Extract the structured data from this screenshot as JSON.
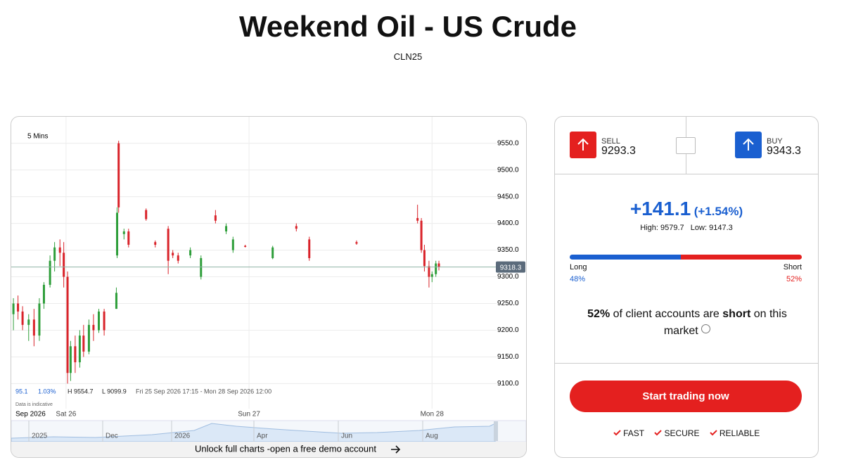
{
  "header": {
    "title": "Weekend Oil - US Crude",
    "subtitle": "CLN25"
  },
  "chart": {
    "type": "candlestick",
    "timeframe": "5 Mins",
    "ylim": [
      9040,
      9597
    ],
    "yticks": [
      {
        "value": 9100,
        "label": "9100.0"
      },
      {
        "value": 9150,
        "label": "9150.0"
      },
      {
        "value": 9200,
        "label": "9200.0"
      },
      {
        "value": 9250,
        "label": "9250.0"
      },
      {
        "value": 9300,
        "label": "9300.0"
      },
      {
        "value": 9350,
        "label": "9350.0"
      },
      {
        "value": 9400,
        "label": "9400.0"
      },
      {
        "value": 9450,
        "label": "9450.0"
      },
      {
        "value": 9500,
        "label": "9500.0"
      },
      {
        "value": 9550,
        "label": "9550.0"
      }
    ],
    "xlim": [
      17,
      80
    ],
    "xticks": [
      {
        "value": 24,
        "label": "Sat 26"
      },
      {
        "value": 48,
        "label": "Sun 27"
      },
      {
        "value": 72,
        "label": "Mon 28"
      }
    ],
    "period_label": "Sep 2026",
    "grid": true,
    "up_color": "#2e9e3a",
    "down_color": "#d9232a",
    "last_price": 9318.3,
    "candles": [
      {
        "x": 17.1,
        "open": 9230,
        "high": 9260,
        "low": 9200,
        "close": 9250
      },
      {
        "x": 17.7,
        "open": 9250,
        "high": 9265,
        "low": 9220,
        "close": 9235
      },
      {
        "x": 18.3,
        "open": 9235,
        "high": 9245,
        "low": 9200,
        "close": 9210
      },
      {
        "x": 19.1,
        "open": 9210,
        "high": 9230,
        "low": 9180,
        "close": 9220
      },
      {
        "x": 19.8,
        "open": 9220,
        "high": 9240,
        "low": 9170,
        "close": 9190
      },
      {
        "x": 20.5,
        "open": 9190,
        "high": 9260,
        "low": 9180,
        "close": 9250
      },
      {
        "x": 21.1,
        "open": 9250,
        "high": 9290,
        "low": 9240,
        "close": 9285
      },
      {
        "x": 21.9,
        "open": 9285,
        "high": 9340,
        "low": 9280,
        "close": 9330
      },
      {
        "x": 22.5,
        "open": 9330,
        "high": 9365,
        "low": 9310,
        "close": 9355
      },
      {
        "x": 23.2,
        "open": 9355,
        "high": 9370,
        "low": 9320,
        "close": 9345
      },
      {
        "x": 23.7,
        "open": 9345,
        "high": 9365,
        "low": 9280,
        "close": 9300
      },
      {
        "x": 24.2,
        "open": 9300,
        "high": 9310,
        "low": 9100,
        "close": 9120
      },
      {
        "x": 24.6,
        "open": 9120,
        "high": 9180,
        "low": 9105,
        "close": 9170
      },
      {
        "x": 25.2,
        "open": 9170,
        "high": 9190,
        "low": 9120,
        "close": 9140
      },
      {
        "x": 25.8,
        "open": 9140,
        "high": 9200,
        "low": 9130,
        "close": 9190
      },
      {
        "x": 26.3,
        "open": 9190,
        "high": 9210,
        "low": 9150,
        "close": 9160
      },
      {
        "x": 27.0,
        "open": 9160,
        "high": 9220,
        "low": 9155,
        "close": 9210
      },
      {
        "x": 27.6,
        "open": 9210,
        "high": 9230,
        "low": 9180,
        "close": 9200
      },
      {
        "x": 28.3,
        "open": 9200,
        "high": 9240,
        "low": 9195,
        "close": 9235
      },
      {
        "x": 29.0,
        "open": 9235,
        "high": 9240,
        "low": 9190,
        "close": 9200
      },
      {
        "x": 30.6,
        "open": 9240,
        "high": 9280,
        "low": 9240,
        "close": 9270
      },
      {
        "x": 30.7,
        "open": 9340,
        "high": 9430,
        "low": 9335,
        "close": 9420
      },
      {
        "x": 30.9,
        "open": 9550,
        "high": 9554.7,
        "low": 9420,
        "close": 9430
      },
      {
        "x": 31.6,
        "open": 9380,
        "high": 9390,
        "low": 9370,
        "close": 9385
      },
      {
        "x": 32.2,
        "open": 9385,
        "high": 9390,
        "low": 9355,
        "close": 9360
      },
      {
        "x": 34.5,
        "open": 9425,
        "high": 9428,
        "low": 9405,
        "close": 9408
      },
      {
        "x": 35.7,
        "open": 9365,
        "high": 9368,
        "low": 9355,
        "close": 9360
      },
      {
        "x": 37.4,
        "open": 9390,
        "high": 9395,
        "low": 9305,
        "close": 9330
      },
      {
        "x": 38.0,
        "open": 9345,
        "high": 9350,
        "low": 9335,
        "close": 9340
      },
      {
        "x": 38.7,
        "open": 9340,
        "high": 9345,
        "low": 9325,
        "close": 9330
      },
      {
        "x": 40.3,
        "open": 9340,
        "high": 9355,
        "low": 9335,
        "close": 9350
      },
      {
        "x": 41.7,
        "open": 9300,
        "high": 9340,
        "low": 9295,
        "close": 9335
      },
      {
        "x": 43.6,
        "open": 9415,
        "high": 9425,
        "low": 9400,
        "close": 9405
      },
      {
        "x": 45.0,
        "open": 9385,
        "high": 9400,
        "low": 9380,
        "close": 9395
      },
      {
        "x": 45.9,
        "open": 9350,
        "high": 9375,
        "low": 9345,
        "close": 9370
      },
      {
        "x": 47.5,
        "open": 9358,
        "high": 9360,
        "low": 9355,
        "close": 9356
      },
      {
        "x": 51.1,
        "open": 9335,
        "high": 9358,
        "low": 9333,
        "close": 9355
      },
      {
        "x": 54.2,
        "open": 9395,
        "high": 9400,
        "low": 9385,
        "close": 9390
      },
      {
        "x": 55.9,
        "open": 9370,
        "high": 9375,
        "low": 9330,
        "close": 9335
      },
      {
        "x": 62.1,
        "open": 9365,
        "high": 9368,
        "low": 9360,
        "close": 9362
      },
      {
        "x": 70.1,
        "open": 9410,
        "high": 9435,
        "low": 9400,
        "close": 9405
      },
      {
        "x": 70.6,
        "open": 9405,
        "high": 9410,
        "low": 9345,
        "close": 9350
      },
      {
        "x": 71.0,
        "open": 9350,
        "high": 9360,
        "low": 9310,
        "close": 9320
      },
      {
        "x": 71.6,
        "open": 9320,
        "high": 9330,
        "low": 9280,
        "close": 9300
      },
      {
        "x": 72.0,
        "open": 9300,
        "high": 9310,
        "low": 9290,
        "close": 9305
      },
      {
        "x": 72.5,
        "open": 9305,
        "high": 9330,
        "low": 9300,
        "close": 9325
      },
      {
        "x": 72.9,
        "open": 9325,
        "high": 9330,
        "low": 9312,
        "close": 9318.3
      }
    ],
    "stats": {
      "change": "95.1",
      "change_pct": "1.03%",
      "high": "H 9554.7",
      "low": "L 9099.9",
      "range": "Fri 25 Sep 2026 17:15 - Mon 28 Sep 2026 12:00"
    },
    "disclaimer": "Data is indicative",
    "navigator_labels": [
      "2025",
      "Dec",
      "2026",
      "Apr",
      "Jun",
      "Aug"
    ],
    "cta": "Unlock full charts -open a free demo account"
  },
  "prices": {
    "sell_label": "SELL",
    "sell": 9293.3,
    "buy_label": "BUY",
    "buy": 9343.3
  },
  "change": {
    "value": "+141.1",
    "pct": "(+1.54%)",
    "high_label": "High:",
    "high": 9579.7,
    "low_label": "Low:",
    "low": 9147.3
  },
  "sentiment": {
    "long_label": "Long",
    "short_label": "Short",
    "long": {
      "value": 48,
      "label": "48%"
    },
    "short": {
      "value": 52,
      "label": "52%"
    },
    "long_color": "#1a5fd0",
    "short_color": "#e4201f",
    "text": [
      "52%",
      " of client accounts are ",
      "short",
      " on this market"
    ]
  },
  "trade": {
    "button": "Start trading now",
    "features": [
      "FAST",
      "SECURE",
      "RELIABLE"
    ]
  }
}
